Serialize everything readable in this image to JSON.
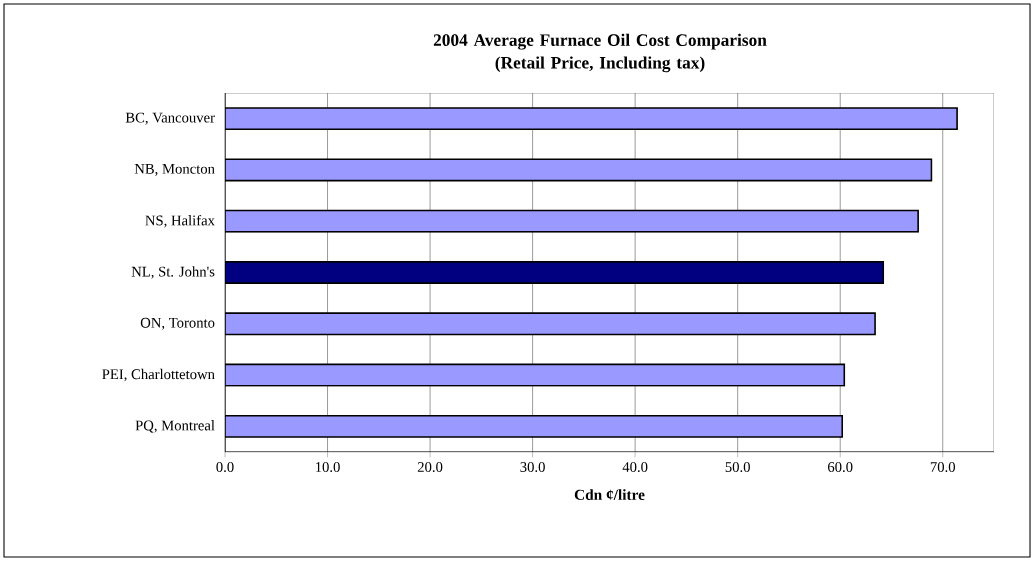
{
  "chart_data": {
    "type": "bar",
    "orientation": "horizontal",
    "title": "2004 Average Furnace Oil Cost Comparison\n(Retail Price, Including tax)",
    "xlabel": "Cdn ¢/litre",
    "categories": [
      "BC, Vancouver",
      "NB, Moncton",
      "NS, Halifax",
      "NL, St. John's",
      "ON, Toronto",
      "PEI, Charlottetown",
      "PQ, Montreal"
    ],
    "values": [
      71.4,
      68.9,
      67.6,
      64.2,
      63.4,
      60.4,
      60.2
    ],
    "colors": [
      "#9999ff",
      "#9999ff",
      "#9999ff",
      "#000080",
      "#9999ff",
      "#9999ff",
      "#9999ff"
    ],
    "xlim": [
      0,
      75
    ],
    "xticks": [
      {
        "value": 0,
        "label": "0.0"
      },
      {
        "value": 10,
        "label": "10.0"
      },
      {
        "value": 20,
        "label": "20.0"
      },
      {
        "value": 30,
        "label": "30.0"
      },
      {
        "value": 40,
        "label": "40.0"
      },
      {
        "value": 50,
        "label": "50.0"
      },
      {
        "value": 60,
        "label": "60.0"
      },
      {
        "value": 70,
        "label": "70.0"
      }
    ],
    "grid": "x"
  }
}
